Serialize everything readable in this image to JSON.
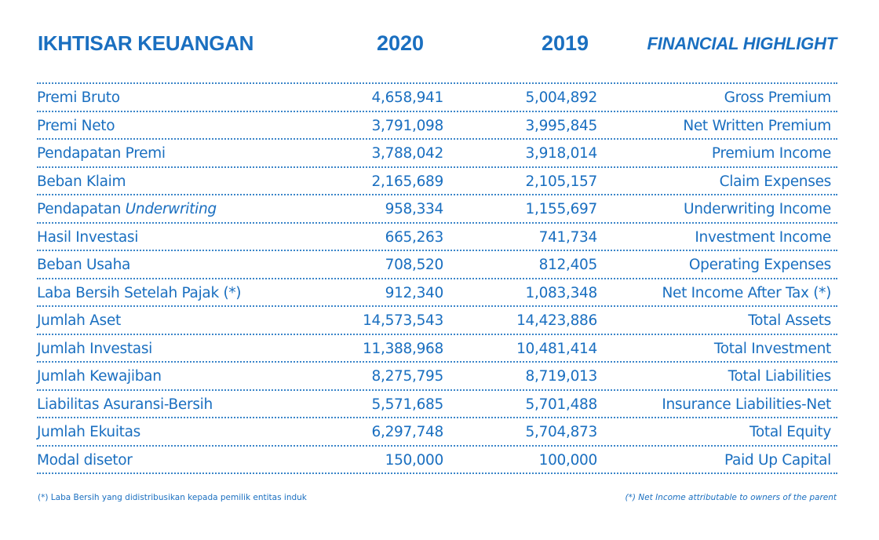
{
  "header": {
    "title_id": "IKHTISAR KEUANGAN",
    "year_1": "2020",
    "year_2": "2019",
    "title_en": "FINANCIAL HIGHLIGHT"
  },
  "rows": [
    {
      "id_label": "Premi Bruto",
      "id_italic": "",
      "v2020": "4,658,941",
      "v2019": "5,004,892",
      "en_label": "Gross Premium"
    },
    {
      "id_label": "Premi Neto",
      "id_italic": "",
      "v2020": "3,791,098",
      "v2019": "3,995,845",
      "en_label": "Net Written Premium"
    },
    {
      "id_label": "Pendapatan Premi",
      "id_italic": "",
      "v2020": "3,788,042",
      "v2019": "3,918,014",
      "en_label": "Premium Income"
    },
    {
      "id_label": "Beban Klaim",
      "id_italic": "",
      "v2020": "2,165,689",
      "v2019": "2,105,157",
      "en_label": "Claim Expenses"
    },
    {
      "id_label": "Pendapatan ",
      "id_italic": "Underwriting",
      "v2020": "958,334",
      "v2019": "1,155,697",
      "en_label": "Underwriting Income"
    },
    {
      "id_label": "Hasil Investasi",
      "id_italic": "",
      "v2020": "665,263",
      "v2019": "741,734",
      "en_label": "Investment Income"
    },
    {
      "id_label": "Beban Usaha",
      "id_italic": "",
      "v2020": "708,520",
      "v2019": "812,405",
      "en_label": "Operating Expenses"
    },
    {
      "id_label": "Laba Bersih Setelah Pajak (*)",
      "id_italic": "",
      "v2020": "912,340",
      "v2019": "1,083,348",
      "en_label": "Net Income After Tax (*)"
    },
    {
      "id_label": "Jumlah Aset",
      "id_italic": "",
      "v2020": "14,573,543",
      "v2019": "14,423,886",
      "en_label": "Total Assets"
    },
    {
      "id_label": "Jumlah Investasi",
      "id_italic": "",
      "v2020": "11,388,968",
      "v2019": "10,481,414",
      "en_label": "Total Investment"
    },
    {
      "id_label": "Jumlah Kewajiban",
      "id_italic": "",
      "v2020": "8,275,795",
      "v2019": "8,719,013",
      "en_label": "Total Liabilities"
    },
    {
      "id_label": "Liabilitas Asuransi-Bersih",
      "id_italic": "",
      "v2020": "5,571,685",
      "v2019": "5,701,488",
      "en_label": "Insurance Liabilities-Net"
    },
    {
      "id_label": "Jumlah Ekuitas",
      "id_italic": "",
      "v2020": "6,297,748",
      "v2019": "5,704,873",
      "en_label": "Total Equity"
    },
    {
      "id_label": "Modal disetor",
      "id_italic": "",
      "v2020": "150,000",
      "v2019": "100,000",
      "en_label": "Paid Up Capital"
    }
  ],
  "footnote": {
    "left": "(*)  Laba Bersih yang didistribusikan kepada pemilik entitas induk",
    "right": "(*) Net Income attributable to owners of the parent"
  },
  "colors": {
    "text": "#1a6fc0",
    "rule": "#3a85c9"
  }
}
